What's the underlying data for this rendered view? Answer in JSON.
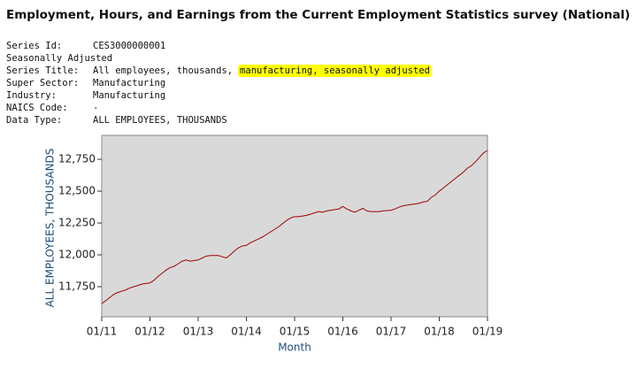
{
  "header": {
    "title": "Employment, Hours, and Earnings from the Current Employment Statistics survey (National)",
    "lines": [
      {
        "label": "Series Id:",
        "value": "CES3000000001"
      },
      {
        "text": "Seasonally Adjusted"
      },
      {
        "label": "Series Title:",
        "value": "All employees, thousands,",
        "highlighted": "manufacturing, seasonally adjusted"
      },
      {
        "label": "Super Sector:",
        "value": "Manufacturing"
      },
      {
        "label": "Industry:",
        "value": "Manufacturing"
      },
      {
        "label": "NAICS Code:",
        "value": "-"
      },
      {
        "label": "Data Type:",
        "value": "ALL EMPLOYEES, THOUSANDS"
      }
    ]
  },
  "chart_data": {
    "type": "line",
    "x_label": "Month",
    "y_label": "ALL EMPLOYEES, THOUSANDS",
    "color": "#a00000",
    "background": "#d9d9d9",
    "x": [
      "01/11",
      "02/11",
      "03/11",
      "04/11",
      "05/11",
      "06/11",
      "07/11",
      "08/11",
      "09/11",
      "10/11",
      "11/11",
      "12/11",
      "01/12",
      "02/12",
      "03/12",
      "04/12",
      "05/12",
      "06/12",
      "07/12",
      "08/12",
      "09/12",
      "10/12",
      "11/12",
      "12/12",
      "01/13",
      "02/13",
      "03/13",
      "04/13",
      "05/13",
      "06/13",
      "07/13",
      "08/13",
      "09/13",
      "10/13",
      "11/13",
      "12/13",
      "01/14",
      "02/14",
      "03/14",
      "04/14",
      "05/14",
      "06/14",
      "07/14",
      "08/14",
      "09/14",
      "10/14",
      "11/14",
      "12/14",
      "01/15",
      "02/15",
      "03/15",
      "04/15",
      "05/15",
      "06/15",
      "07/15",
      "08/15",
      "09/15",
      "10/15",
      "11/15",
      "12/15",
      "01/16",
      "02/16",
      "03/16",
      "04/16",
      "05/16",
      "06/16",
      "07/16",
      "08/16",
      "09/16",
      "10/16",
      "11/16",
      "12/16",
      "01/17",
      "02/17",
      "03/17",
      "04/17",
      "05/17",
      "06/17",
      "07/17",
      "08/17",
      "09/17",
      "10/17",
      "11/17",
      "12/17",
      "01/18",
      "02/18",
      "03/18",
      "04/18",
      "05/18",
      "06/18",
      "07/18",
      "08/18",
      "09/18",
      "10/18",
      "11/18",
      "12/18",
      "01/19"
    ],
    "values": [
      11618,
      11640,
      11665,
      11690,
      11705,
      11715,
      11725,
      11740,
      11750,
      11760,
      11770,
      11775,
      11780,
      11800,
      11830,
      11855,
      11880,
      11900,
      11910,
      11930,
      11950,
      11960,
      11950,
      11955,
      11960,
      11975,
      11990,
      11995,
      11995,
      11995,
      11985,
      11975,
      12000,
      12030,
      12055,
      12070,
      12075,
      12095,
      12110,
      12125,
      12140,
      12160,
      12180,
      12200,
      12220,
      12245,
      12270,
      12290,
      12300,
      12300,
      12305,
      12310,
      12320,
      12330,
      12340,
      12335,
      12345,
      12350,
      12355,
      12360,
      12380,
      12360,
      12345,
      12335,
      12350,
      12365,
      12345,
      12340,
      12340,
      12340,
      12345,
      12348,
      12350,
      12360,
      12375,
      12385,
      12390,
      12395,
      12400,
      12405,
      12415,
      12420,
      12450,
      12470,
      12500,
      12525,
      12550,
      12575,
      12600,
      12625,
      12650,
      12680,
      12700,
      12730,
      12765,
      12800,
      12820
    ],
    "xticks": [
      "01/11",
      "01/12",
      "01/13",
      "01/14",
      "01/15",
      "01/16",
      "01/17",
      "01/18",
      "01/19"
    ],
    "ylim": [
      11514,
      12938
    ],
    "yticks": [
      {
        "value": 11750,
        "label": "11,750"
      },
      {
        "value": 12000,
        "label": "12,000"
      },
      {
        "value": 12250,
        "label": "12,250"
      },
      {
        "value": 12500,
        "label": "12,500"
      },
      {
        "value": 12750,
        "label": "12,750"
      }
    ]
  }
}
